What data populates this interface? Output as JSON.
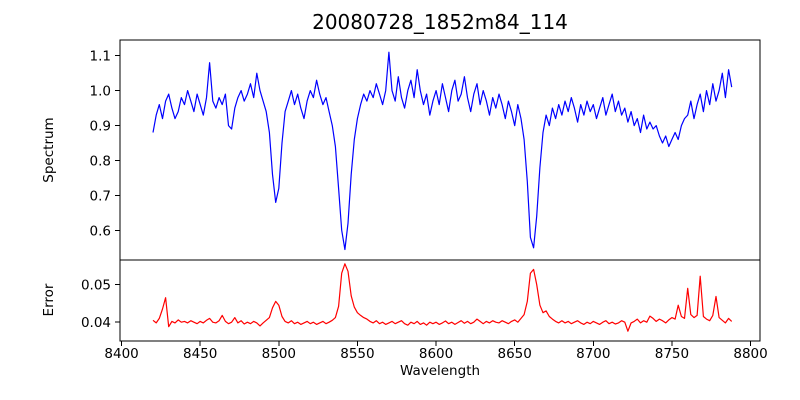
{
  "chart_data": {
    "type": "line",
    "title": "20080728_1852m84_114",
    "xlabel": "Wavelength",
    "background": "#ffffff",
    "axis_color": "#000000",
    "xlim": [
      8399,
      8806
    ],
    "xticks": [
      8400,
      8450,
      8500,
      8550,
      8600,
      8650,
      8700,
      8750,
      8800
    ],
    "xtick_labels": [
      "8400",
      "8450",
      "8500",
      "8550",
      "8600",
      "8650",
      "8700",
      "8750",
      "8800"
    ],
    "panels": [
      {
        "ylabel": "Spectrum",
        "ylim": [
          0.515,
          1.145
        ],
        "yticks": [
          0.6,
          0.7,
          0.8,
          0.9,
          1.0,
          1.1
        ],
        "ytick_labels": [
          "0.6",
          "0.7",
          "0.8",
          "0.9",
          "1.0",
          "1.1"
        ],
        "grid": false,
        "series": [
          {
            "name": "spectrum",
            "color": "#0000ff",
            "x_start": 8420,
            "x_step": 2,
            "values": [
              0.88,
              0.93,
              0.96,
              0.92,
              0.97,
              0.99,
              0.95,
              0.92,
              0.94,
              0.98,
              0.96,
              1.0,
              0.97,
              0.94,
              0.99,
              0.96,
              0.93,
              0.98,
              1.08,
              0.97,
              0.95,
              0.98,
              0.96,
              0.99,
              0.9,
              0.89,
              0.95,
              0.98,
              1.0,
              0.97,
              0.99,
              1.02,
              0.98,
              1.05,
              1.0,
              0.97,
              0.94,
              0.88,
              0.76,
              0.68,
              0.72,
              0.85,
              0.94,
              0.97,
              1.0,
              0.96,
              0.99,
              0.95,
              0.92,
              0.97,
              1.0,
              0.98,
              1.03,
              0.99,
              0.96,
              0.98,
              0.94,
              0.9,
              0.84,
              0.72,
              0.6,
              0.545,
              0.62,
              0.76,
              0.86,
              0.92,
              0.96,
              0.99,
              0.97,
              1.0,
              0.98,
              1.02,
              0.99,
              0.96,
              1.0,
              1.11,
              1.0,
              0.97,
              1.04,
              0.98,
              0.95,
              1.0,
              1.03,
              0.98,
              1.06,
              1.0,
              0.96,
              0.99,
              0.93,
              0.97,
              1.0,
              0.96,
              1.02,
              0.98,
              0.94,
              1.0,
              1.03,
              0.97,
              0.99,
              1.04,
              0.98,
              0.94,
              0.99,
              1.02,
              0.96,
              1.0,
              0.97,
              0.93,
              0.98,
              0.95,
              0.99,
              0.96,
              0.92,
              0.97,
              0.94,
              0.9,
              0.96,
              0.92,
              0.86,
              0.74,
              0.58,
              0.55,
              0.64,
              0.78,
              0.88,
              0.93,
              0.9,
              0.95,
              0.92,
              0.96,
              0.93,
              0.97,
              0.94,
              0.98,
              0.95,
              0.91,
              0.96,
              0.93,
              0.97,
              0.94,
              0.96,
              0.92,
              0.95,
              0.98,
              0.93,
              0.96,
              0.99,
              0.94,
              0.97,
              0.93,
              0.95,
              0.91,
              0.94,
              0.9,
              0.92,
              0.88,
              0.93,
              0.89,
              0.91,
              0.89,
              0.9,
              0.87,
              0.85,
              0.87,
              0.84,
              0.86,
              0.88,
              0.86,
              0.9,
              0.92,
              0.93,
              0.97,
              0.92,
              0.96,
              0.99,
              0.94,
              1.0,
              0.96,
              1.02,
              0.97,
              1.0,
              1.05,
              0.98,
              1.06,
              1.01
            ]
          }
        ]
      },
      {
        "ylabel": "Error",
        "ylim": [
          0.035,
          0.0565
        ],
        "yticks": [
          0.04,
          0.05
        ],
        "ytick_labels": [
          "0.04",
          "0.05"
        ],
        "grid": false,
        "series": [
          {
            "name": "error",
            "color": "#ff0000",
            "x_start": 8420,
            "x_step": 2,
            "values": [
              0.0405,
              0.0398,
              0.041,
              0.0435,
              0.0465,
              0.0388,
              0.0402,
              0.0398,
              0.0406,
              0.04,
              0.0402,
              0.0398,
              0.0404,
              0.04,
              0.0396,
              0.0402,
              0.0398,
              0.0405,
              0.041,
              0.04,
              0.0398,
              0.0404,
              0.0418,
              0.0402,
              0.0396,
              0.04,
              0.0412,
              0.0398,
              0.0404,
              0.0395,
              0.04,
              0.0396,
              0.0402,
              0.0398,
              0.039,
              0.0398,
              0.0405,
              0.0412,
              0.0438,
              0.0455,
              0.0445,
              0.0415,
              0.0402,
              0.0398,
              0.0404,
              0.0396,
              0.04,
              0.0394,
              0.0398,
              0.0402,
              0.0396,
              0.04,
              0.0394,
              0.0398,
              0.0402,
              0.0396,
              0.04,
              0.0405,
              0.0412,
              0.0442,
              0.053,
              0.0555,
              0.0535,
              0.047,
              0.044,
              0.0425,
              0.0418,
              0.0412,
              0.0408,
              0.0402,
              0.0398,
              0.0404,
              0.0396,
              0.04,
              0.0394,
              0.0398,
              0.0402,
              0.0396,
              0.04,
              0.0404,
              0.0396,
              0.0392,
              0.04,
              0.0396,
              0.0402,
              0.0394,
              0.0398,
              0.0392,
              0.04,
              0.0396,
              0.04,
              0.0394,
              0.0398,
              0.0403,
              0.0396,
              0.04,
              0.0394,
              0.0399,
              0.0404,
              0.0397,
              0.0402,
              0.0396,
              0.04,
              0.0408,
              0.0402,
              0.0396,
              0.0402,
              0.0398,
              0.0404,
              0.04,
              0.0398,
              0.0404,
              0.04,
              0.0396,
              0.0402,
              0.0406,
              0.04,
              0.041,
              0.042,
              0.0455,
              0.053,
              0.054,
              0.05,
              0.0445,
              0.0425,
              0.043,
              0.0415,
              0.0408,
              0.0402,
              0.0398,
              0.0404,
              0.0398,
              0.0402,
              0.0396,
              0.04,
              0.0404,
              0.0398,
              0.0394,
              0.04,
              0.0396,
              0.0402,
              0.0398,
              0.0394,
              0.04,
              0.0404,
              0.0396,
              0.04,
              0.0395,
              0.0398,
              0.0404,
              0.04,
              0.0376,
              0.0398,
              0.0402,
              0.0408,
              0.0398,
              0.0404,
              0.04,
              0.0416,
              0.041,
              0.0402,
              0.0408,
              0.0404,
              0.0398,
              0.0406,
              0.0412,
              0.0408,
              0.0445,
              0.0415,
              0.041,
              0.049,
              0.042,
              0.0412,
              0.0418,
              0.0522,
              0.0415,
              0.0408,
              0.0404,
              0.0418,
              0.0468,
              0.0412,
              0.0405,
              0.0398,
              0.041,
              0.0402
            ]
          }
        ]
      }
    ]
  }
}
